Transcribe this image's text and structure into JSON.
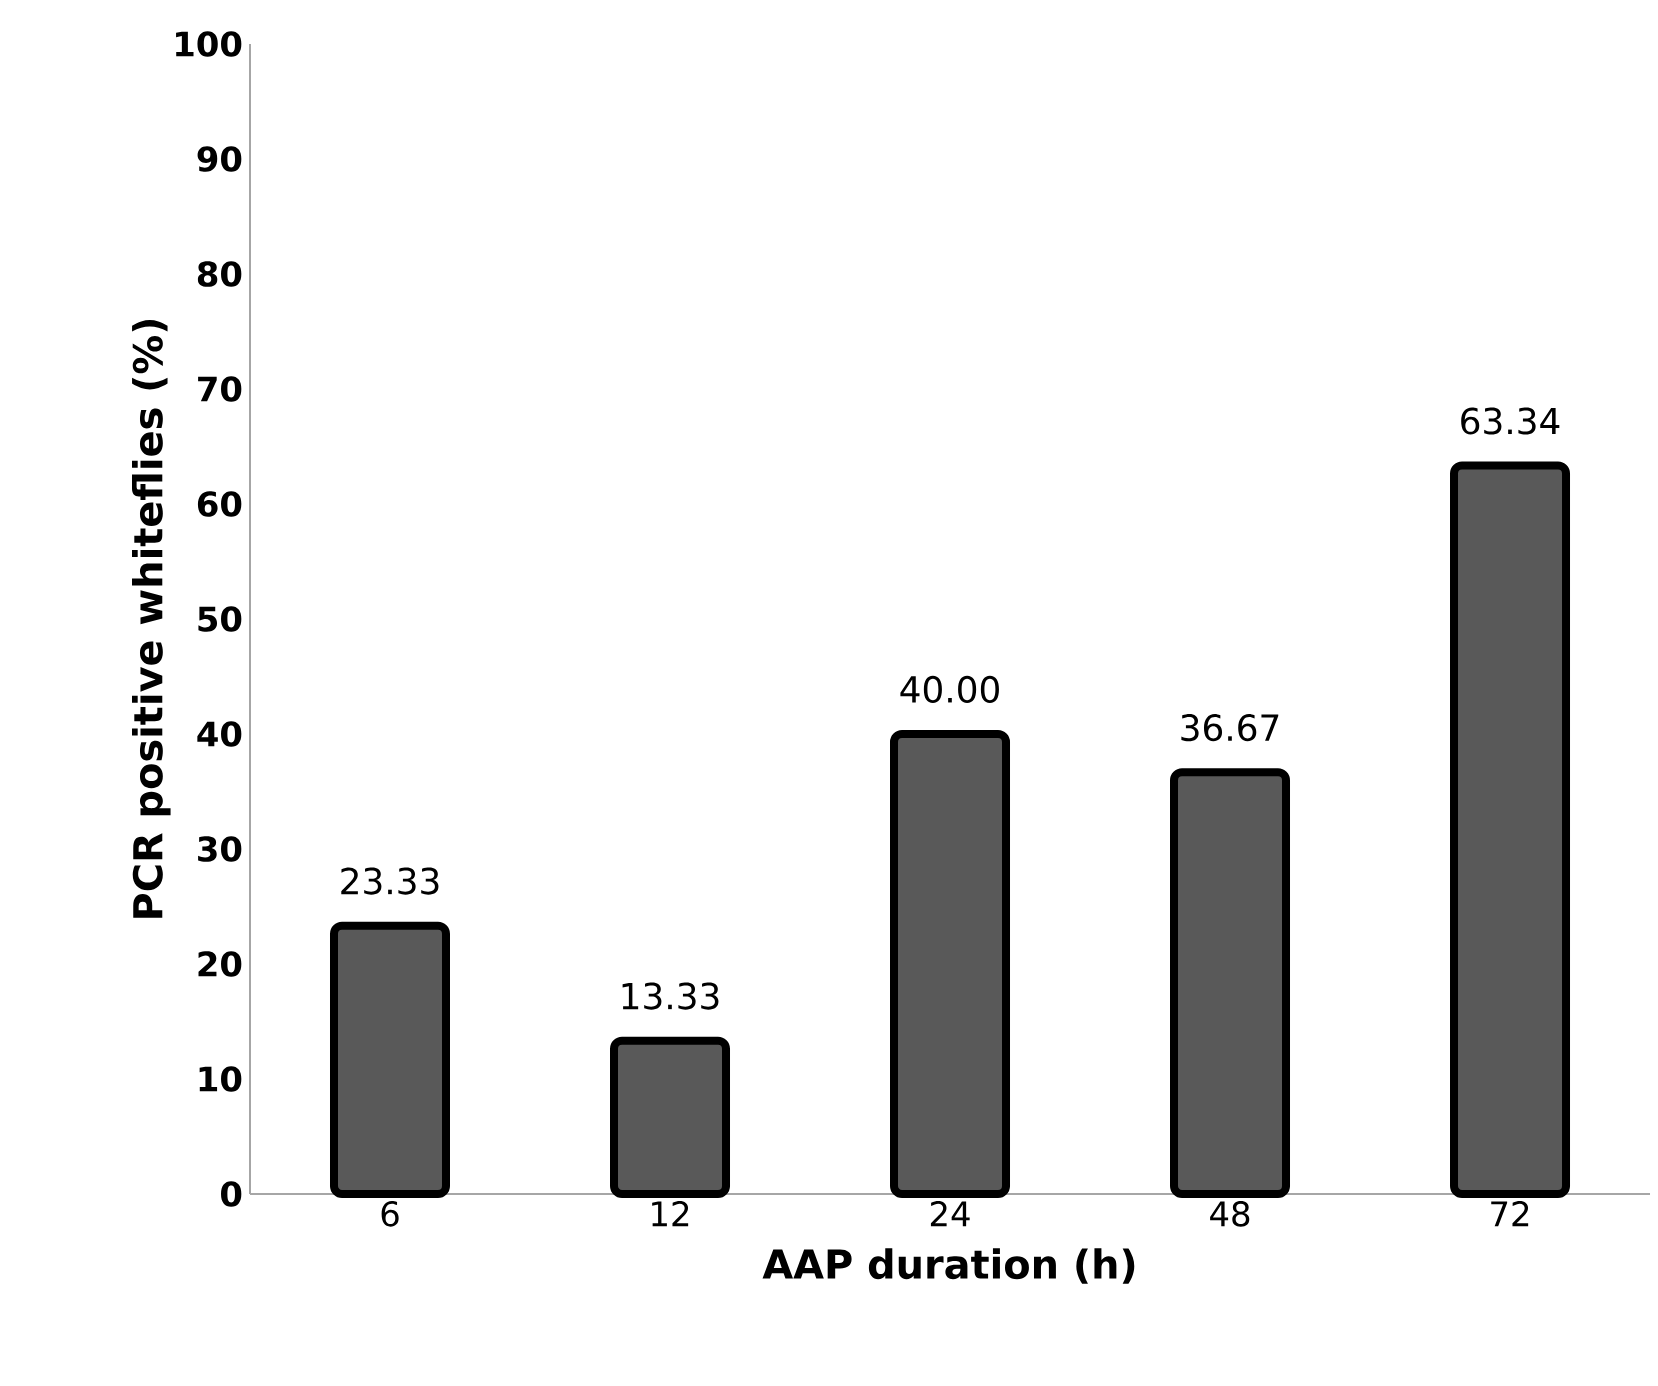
{
  "chart_data": {
    "type": "bar",
    "xlabel": "AAP duration (h)",
    "ylabel": "PCR positive whiteflies (%)",
    "categories": [
      "6",
      "12",
      "24",
      "48",
      "72"
    ],
    "values": [
      23.33,
      13.33,
      40.0,
      36.67,
      63.34
    ],
    "value_labels": [
      "23.33",
      "13.33",
      "40.00",
      "36.67",
      "63.34"
    ],
    "color": "#595959",
    "ylim": [
      0,
      100
    ],
    "yticks": [
      0,
      10,
      20,
      30,
      40,
      50,
      60,
      70,
      80,
      90,
      100
    ],
    "grid": false
  }
}
